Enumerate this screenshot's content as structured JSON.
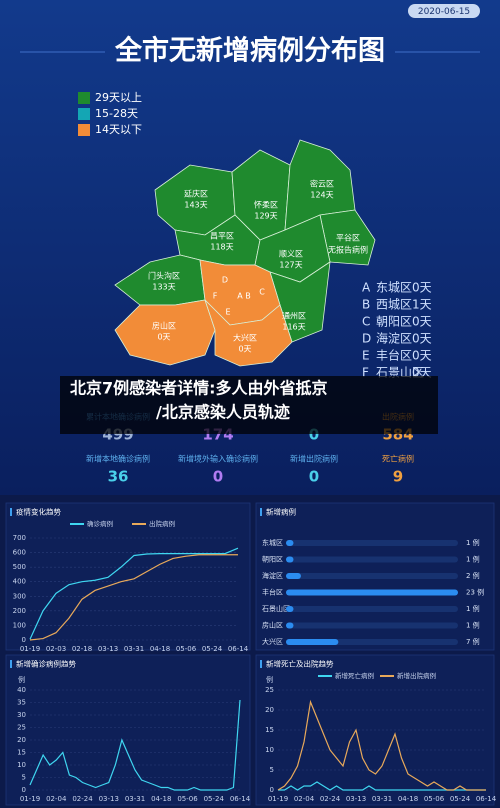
{
  "date": "2020-06-15",
  "title": "全市无新增病例分布图",
  "legend": [
    {
      "label": "29天以上",
      "color": "#1f8a2e"
    },
    {
      "label": "15-28天",
      "color": "#14a6b4"
    },
    {
      "label": "14天以下",
      "color": "#f28c38"
    }
  ],
  "districts": [
    {
      "name": "延庆区",
      "days": "143天"
    },
    {
      "name": "怀柔区",
      "days": "129天"
    },
    {
      "name": "密云区",
      "days": "124天"
    },
    {
      "name": "昌平区",
      "days": "118天"
    },
    {
      "name": "平谷区",
      "days": "无报告病例"
    },
    {
      "name": "顺义区",
      "days": "127天"
    },
    {
      "name": "门头沟区",
      "days": "133天"
    },
    {
      "name": "通州区",
      "days": "116天"
    },
    {
      "name": "房山区",
      "days": "0天"
    },
    {
      "name": "大兴区",
      "days": "0天"
    }
  ],
  "center_marks": [
    "A",
    "B",
    "C",
    "D",
    "E",
    "F"
  ],
  "center_list": [
    {
      "key": "A",
      "name": "东城区",
      "days": "0天"
    },
    {
      "key": "B",
      "name": "西城区",
      "days": "1天"
    },
    {
      "key": "C",
      "name": "朝阳区",
      "days": "0天"
    },
    {
      "key": "D",
      "name": "海淀区",
      "days": "0天"
    },
    {
      "key": "E",
      "name": "丰台区",
      "days": "0天"
    },
    {
      "key": "F",
      "name": "石景山区",
      "days": "0天"
    }
  ],
  "headline": [
    "北京7例感染者详情:多人由外省抵京",
    "/北京感染人员轨迹"
  ],
  "stats": [
    [
      {
        "label": "累计本地确诊病例",
        "value": "499",
        "color": "#9fb4d8",
        "label_color": "#4a9cf0"
      },
      {
        "value": "174",
        "color": "#b07cf2"
      },
      {
        "value": "0",
        "color": "#4ad0ea"
      },
      {
        "label": "出院病例",
        "value": "584",
        "color": "#f0a040",
        "label_color": "#f0a040"
      }
    ],
    [
      {
        "label": "新增本地确诊病例",
        "value": "36",
        "color": "#4ad0ea",
        "label_color": "#5fb2f0"
      },
      {
        "label": "新增境外输入确诊病例",
        "value": "0",
        "color": "#b07cf2",
        "label_color": "#5fb2f0"
      },
      {
        "label": "新增出院病例",
        "value": "0",
        "color": "#4ad0ea",
        "label_color": "#5fb2f0"
      },
      {
        "label": "死亡病例",
        "value": "9",
        "color": "#f0a040",
        "label_color": "#f0a040"
      }
    ]
  ],
  "chart_data": [
    {
      "type": "line",
      "title": "疫情变化趋势",
      "categories": [
        "01-19",
        null,
        "02-03",
        null,
        "02-18",
        null,
        "03-13",
        null,
        "03-31",
        null,
        "04-18",
        null,
        "05-06",
        null,
        "05-24",
        null,
        "06-14"
      ],
      "series": [
        {
          "name": "确诊病例",
          "color": "#3fd6f0",
          "values": [
            5,
            200,
            320,
            380,
            400,
            410,
            430,
            500,
            580,
            590,
            593,
            593,
            593,
            593,
            593,
            593,
            630
          ]
        },
        {
          "name": "出院病例",
          "color": "#e8a95a",
          "values": [
            0,
            10,
            50,
            150,
            280,
            340,
            370,
            400,
            420,
            470,
            520,
            560,
            575,
            585,
            585,
            585,
            585
          ]
        }
      ],
      "ylim": [
        0,
        700
      ],
      "yticks": [
        0,
        100,
        200,
        300,
        400,
        500,
        600,
        700
      ],
      "grid": true
    },
    {
      "type": "hbar",
      "title": "新增病例",
      "categories": [
        "东城区",
        "朝阳区",
        "海淀区",
        "丰台区",
        "石景山区",
        "房山区",
        "大兴区"
      ],
      "values": [
        1,
        1,
        2,
        23,
        1,
        1,
        7
      ],
      "value_labels": [
        "1 例",
        "1 例",
        "2 例",
        "23 例",
        "1 例",
        "1 例",
        "7 例"
      ],
      "color": "#2b8cf0"
    },
    {
      "type": "line",
      "title": "新增确诊病例趋势",
      "y_unit": "例",
      "categories": [
        "01-19",
        null,
        null,
        null,
        "02-04",
        null,
        null,
        null,
        "02-24",
        null,
        null,
        null,
        "03-13",
        null,
        null,
        null,
        "03-31",
        null,
        null,
        null,
        "04-18",
        null,
        null,
        null,
        "05-06",
        null,
        null,
        null,
        "05-24",
        null,
        null,
        null,
        "06-14"
      ],
      "series": [
        {
          "color": "#3fd6f0",
          "values": [
            2,
            8,
            14,
            10,
            12,
            15,
            6,
            5,
            3,
            2,
            1,
            2,
            3,
            10,
            20,
            14,
            8,
            4,
            3,
            2,
            1,
            1,
            0,
            0,
            0,
            1,
            0,
            0,
            0,
            0,
            0,
            1,
            36
          ]
        }
      ],
      "ylim": [
        0,
        40
      ],
      "yticks": [
        0,
        5,
        10,
        15,
        20,
        25,
        30,
        35,
        40
      ],
      "grid": true
    },
    {
      "type": "line",
      "title": "新增死亡及出院趋势",
      "y_unit": "例",
      "categories": [
        "01-19",
        null,
        null,
        null,
        "02-04",
        null,
        null,
        null,
        "02-24",
        null,
        null,
        null,
        "03-13",
        null,
        null,
        null,
        "03-31",
        null,
        null,
        null,
        "04-18",
        null,
        null,
        null,
        "05-06",
        null,
        null,
        null,
        "05-24",
        null,
        null,
        null,
        "06-14"
      ],
      "series": [
        {
          "name": "新增死亡病例",
          "color": "#3fd6f0",
          "values": [
            0,
            0,
            1,
            0,
            1,
            1,
            2,
            1,
            0,
            1,
            0,
            0,
            0,
            0,
            1,
            0,
            0,
            0,
            0,
            0,
            0,
            0,
            0,
            0,
            0,
            0,
            0,
            0,
            0,
            0,
            0,
            0,
            0
          ]
        },
        {
          "name": "新增出院病例",
          "color": "#e8a95a",
          "values": [
            0,
            1,
            3,
            6,
            12,
            22,
            18,
            14,
            10,
            8,
            6,
            12,
            15,
            8,
            5,
            4,
            6,
            10,
            14,
            8,
            4,
            3,
            2,
            1,
            2,
            1,
            0,
            0,
            1,
            0,
            0,
            0,
            0
          ]
        }
      ],
      "ylim": [
        0,
        25
      ],
      "yticks": [
        0,
        5,
        10,
        15,
        20,
        25
      ],
      "grid": true
    }
  ]
}
